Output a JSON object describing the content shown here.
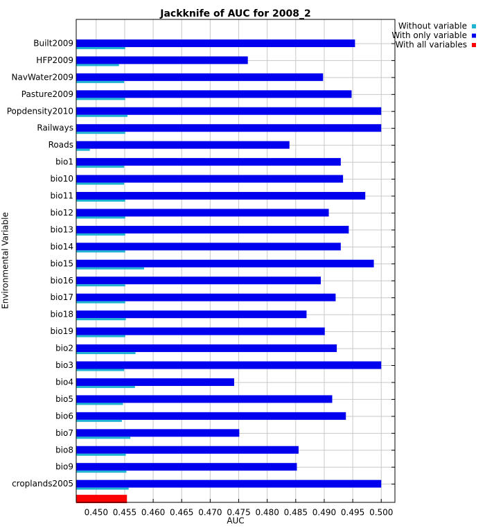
{
  "chart_data": {
    "type": "hbar",
    "title": "Jackknife of AUC for 2008_2",
    "x_label": "AUC",
    "y_label": "Environmental Variable",
    "categories": [
      "Built2009",
      "HFP2009",
      "NavWater2009",
      "Pasture2009",
      "Popdensity2010",
      "Railways",
      "Roads",
      "bio1",
      "bio10",
      "bio11",
      "bio12",
      "bio13",
      "bio14",
      "bio15",
      "bio16",
      "bio17",
      "bio18",
      "bio19",
      "bio2",
      "bio3",
      "bio4",
      "bio5",
      "bio6",
      "bio7",
      "bio8",
      "bio9",
      "croplands2005"
    ],
    "series": [
      {
        "name": "Without variable",
        "color": "#1fb4d2",
        "values": [
          0.4551,
          0.454,
          0.4549,
          0.4551,
          0.4555,
          0.4551,
          0.4489,
          0.4549,
          0.4549,
          0.4551,
          0.4551,
          0.4551,
          0.4551,
          0.4584,
          0.4551,
          0.4551,
          0.4552,
          0.4551,
          0.4569,
          0.4549,
          0.4568,
          0.4547,
          0.4545,
          0.456,
          0.4552,
          0.4553,
          0.4557
        ]
      },
      {
        "name": "With only variable",
        "color": "#0000ee",
        "values": [
          0.4954,
          0.4766,
          0.4898,
          0.4948,
          0.5,
          0.5,
          0.4839,
          0.4929,
          0.4933,
          0.4972,
          0.4908,
          0.4943,
          0.4929,
          0.4987,
          0.4894,
          0.492,
          0.4869,
          0.4901,
          0.4922,
          0.5,
          0.4742,
          0.4914,
          0.4938,
          0.4751,
          0.4855,
          0.4852,
          0.5
        ]
      }
    ],
    "all_variables": {
      "name": "With all variables",
      "color": "#ff0000",
      "value": 0.4554
    },
    "xlim": [
      0.4465,
      0.5024
    ],
    "xticks": [
      {
        "value": 0.45,
        "label": "0.450"
      },
      {
        "value": 0.455,
        "label": "0.455"
      },
      {
        "value": 0.46,
        "label": "0.460"
      },
      {
        "value": 0.465,
        "label": "0.465"
      },
      {
        "value": 0.47,
        "label": "0.470"
      },
      {
        "value": 0.475,
        "label": "0.475"
      },
      {
        "value": 0.48,
        "label": "0.480"
      },
      {
        "value": 0.485,
        "label": "0.485"
      },
      {
        "value": 0.49,
        "label": "0.490"
      },
      {
        "value": 0.495,
        "label": "0.495"
      },
      {
        "value": 0.5,
        "label": "0.500"
      }
    ],
    "grid": true,
    "legend": "top-right"
  }
}
